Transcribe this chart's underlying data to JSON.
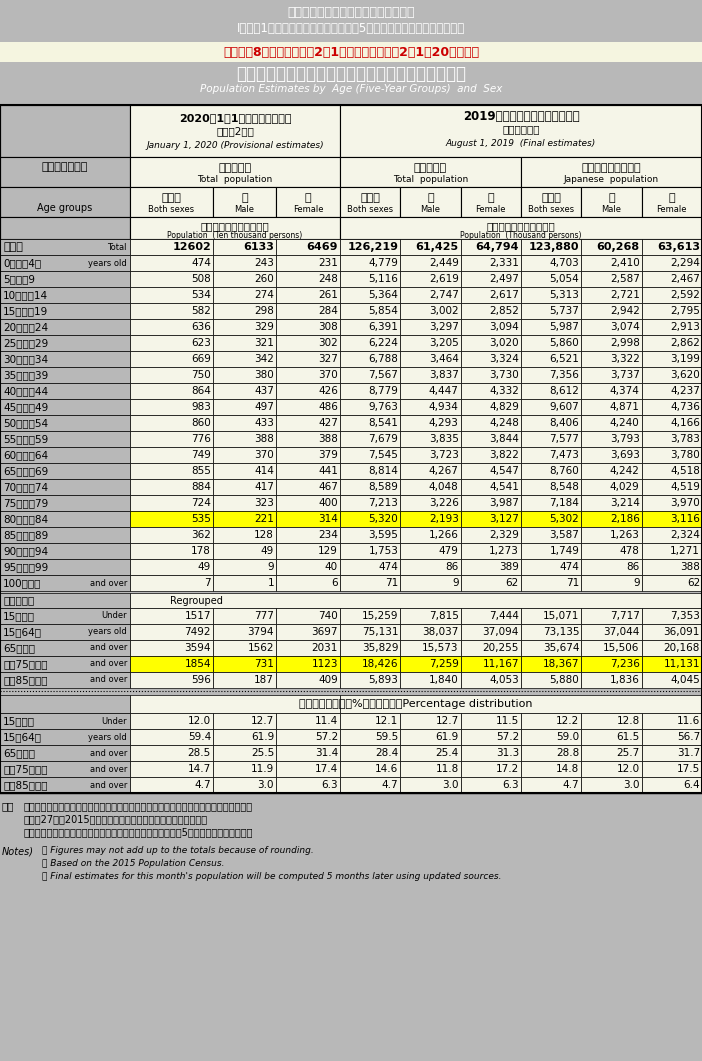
{
  "title1": "総務省統計局　人口推計の結果の概要",
  "title2": "I．各月1日現在人口　「全国：年齢（5歳階級），男女別人口」統計表",
  "title3": "令和元年8月確定値、令和2年1月概算値　（令和2年1月20日公表）",
  "main_title": "年　齢（５　歳　階　級），　男　女　別　人　口",
  "main_title_en": "Population Estimates by  Age (Five-Year Groups)  and  Sex",
  "col_header1_ja": "2020年1月1日現在（概算値）",
  "col_header1_sub_ja": "（令和2年）",
  "col_header1_en": "January 1, 2020 (Provisional estimates)",
  "col_header2_ja": "2019年８月１日現在（確定値）",
  "col_header2_sub_ja": "（令和元年）",
  "col_header2_en": "August 1, 2019  (Final estimates)",
  "bg_gray": "#b8b8b8",
  "bg_light": "#f5f5e8",
  "bg_yellow": "#ffff00",
  "row_data": [
    {
      "age_ja": "総　数",
      "age_en": "Total",
      "v2020_bs": "12602",
      "v2020_m": "6133",
      "v2020_f": "6469",
      "v2019_bs": "126,219",
      "v2019_m": "61,425",
      "v2019_f": "64,794",
      "v2019j_bs": "123,880",
      "v2019j_m": "60,268",
      "v2019j_f": "63,613",
      "bold": true,
      "yellow": false
    },
    {
      "age_ja": "0　～　4歳",
      "age_en": "years old",
      "v2020_bs": "474",
      "v2020_m": "243",
      "v2020_f": "231",
      "v2019_bs": "4,779",
      "v2019_m": "2,449",
      "v2019_f": "2,331",
      "v2019j_bs": "4,703",
      "v2019j_m": "2,410",
      "v2019j_f": "2,294",
      "bold": false,
      "yellow": false
    },
    {
      "age_ja": "5　～　9",
      "age_en": "",
      "v2020_bs": "508",
      "v2020_m": "260",
      "v2020_f": "248",
      "v2019_bs": "5,116",
      "v2019_m": "2,619",
      "v2019_f": "2,497",
      "v2019j_bs": "5,054",
      "v2019j_m": "2,587",
      "v2019j_f": "2,467",
      "bold": false,
      "yellow": false
    },
    {
      "age_ja": "10　～　14",
      "age_en": "",
      "v2020_bs": "534",
      "v2020_m": "274",
      "v2020_f": "261",
      "v2019_bs": "5,364",
      "v2019_m": "2,747",
      "v2019_f": "2,617",
      "v2019j_bs": "5,313",
      "v2019j_m": "2,721",
      "v2019j_f": "2,592",
      "bold": false,
      "yellow": false
    },
    {
      "age_ja": "15　～　19",
      "age_en": "",
      "v2020_bs": "582",
      "v2020_m": "298",
      "v2020_f": "284",
      "v2019_bs": "5,854",
      "v2019_m": "3,002",
      "v2019_f": "2,852",
      "v2019j_bs": "5,737",
      "v2019j_m": "2,942",
      "v2019j_f": "2,795",
      "bold": false,
      "yellow": false
    },
    {
      "age_ja": "20　～　24",
      "age_en": "",
      "v2020_bs": "636",
      "v2020_m": "329",
      "v2020_f": "308",
      "v2019_bs": "6,391",
      "v2019_m": "3,297",
      "v2019_f": "3,094",
      "v2019j_bs": "5,987",
      "v2019j_m": "3,074",
      "v2019j_f": "2,913",
      "bold": false,
      "yellow": false
    },
    {
      "age_ja": "25　～　29",
      "age_en": "",
      "v2020_bs": "623",
      "v2020_m": "321",
      "v2020_f": "302",
      "v2019_bs": "6,224",
      "v2019_m": "3,205",
      "v2019_f": "3,020",
      "v2019j_bs": "5,860",
      "v2019j_m": "2,998",
      "v2019j_f": "2,862",
      "bold": false,
      "yellow": false
    },
    {
      "age_ja": "30　～　34",
      "age_en": "",
      "v2020_bs": "669",
      "v2020_m": "342",
      "v2020_f": "327",
      "v2019_bs": "6,788",
      "v2019_m": "3,464",
      "v2019_f": "3,324",
      "v2019j_bs": "6,521",
      "v2019j_m": "3,322",
      "v2019j_f": "3,199",
      "bold": false,
      "yellow": false
    },
    {
      "age_ja": "35　～　39",
      "age_en": "",
      "v2020_bs": "750",
      "v2020_m": "380",
      "v2020_f": "370",
      "v2019_bs": "7,567",
      "v2019_m": "3,837",
      "v2019_f": "3,730",
      "v2019j_bs": "7,356",
      "v2019j_m": "3,737",
      "v2019j_f": "3,620",
      "bold": false,
      "yellow": false
    },
    {
      "age_ja": "40　～　44",
      "age_en": "",
      "v2020_bs": "864",
      "v2020_m": "437",
      "v2020_f": "426",
      "v2019_bs": "8,779",
      "v2019_m": "4,447",
      "v2019_f": "4,332",
      "v2019j_bs": "8,612",
      "v2019j_m": "4,374",
      "v2019j_f": "4,237",
      "bold": false,
      "yellow": false
    },
    {
      "age_ja": "45　～　49",
      "age_en": "",
      "v2020_bs": "983",
      "v2020_m": "497",
      "v2020_f": "486",
      "v2019_bs": "9,763",
      "v2019_m": "4,934",
      "v2019_f": "4,829",
      "v2019j_bs": "9,607",
      "v2019j_m": "4,871",
      "v2019j_f": "4,736",
      "bold": false,
      "yellow": false
    },
    {
      "age_ja": "50　～　54",
      "age_en": "",
      "v2020_bs": "860",
      "v2020_m": "433",
      "v2020_f": "427",
      "v2019_bs": "8,541",
      "v2019_m": "4,293",
      "v2019_f": "4,248",
      "v2019j_bs": "8,406",
      "v2019j_m": "4,240",
      "v2019j_f": "4,166",
      "bold": false,
      "yellow": false
    },
    {
      "age_ja": "55　～　59",
      "age_en": "",
      "v2020_bs": "776",
      "v2020_m": "388",
      "v2020_f": "388",
      "v2019_bs": "7,679",
      "v2019_m": "3,835",
      "v2019_f": "3,844",
      "v2019j_bs": "7,577",
      "v2019j_m": "3,793",
      "v2019j_f": "3,783",
      "bold": false,
      "yellow": false
    },
    {
      "age_ja": "60　～　64",
      "age_en": "",
      "v2020_bs": "749",
      "v2020_m": "370",
      "v2020_f": "379",
      "v2019_bs": "7,545",
      "v2019_m": "3,723",
      "v2019_f": "3,822",
      "v2019j_bs": "7,473",
      "v2019j_m": "3,693",
      "v2019j_f": "3,780",
      "bold": false,
      "yellow": false
    },
    {
      "age_ja": "65　～　69",
      "age_en": "",
      "v2020_bs": "855",
      "v2020_m": "414",
      "v2020_f": "441",
      "v2019_bs": "8,814",
      "v2019_m": "4,267",
      "v2019_f": "4,547",
      "v2019j_bs": "8,760",
      "v2019j_m": "4,242",
      "v2019j_f": "4,518",
      "bold": false,
      "yellow": false
    },
    {
      "age_ja": "70　～　74",
      "age_en": "",
      "v2020_bs": "884",
      "v2020_m": "417",
      "v2020_f": "467",
      "v2019_bs": "8,589",
      "v2019_m": "4,048",
      "v2019_f": "4,541",
      "v2019j_bs": "8,548",
      "v2019j_m": "4,029",
      "v2019j_f": "4,519",
      "bold": false,
      "yellow": false
    },
    {
      "age_ja": "75　～　79",
      "age_en": "",
      "v2020_bs": "724",
      "v2020_m": "323",
      "v2020_f": "400",
      "v2019_bs": "7,213",
      "v2019_m": "3,226",
      "v2019_f": "3,987",
      "v2019j_bs": "7,184",
      "v2019j_m": "3,214",
      "v2019j_f": "3,970",
      "bold": false,
      "yellow": false
    },
    {
      "age_ja": "80　～　84",
      "age_en": "",
      "v2020_bs": "535",
      "v2020_m": "221",
      "v2020_f": "314",
      "v2019_bs": "5,320",
      "v2019_m": "2,193",
      "v2019_f": "3,127",
      "v2019j_bs": "5,302",
      "v2019j_m": "2,186",
      "v2019j_f": "3,116",
      "bold": false,
      "yellow": true
    },
    {
      "age_ja": "85　～　89",
      "age_en": "",
      "v2020_bs": "362",
      "v2020_m": "128",
      "v2020_f": "234",
      "v2019_bs": "3,595",
      "v2019_m": "1,266",
      "v2019_f": "2,329",
      "v2019j_bs": "3,587",
      "v2019j_m": "1,263",
      "v2019j_f": "2,324",
      "bold": false,
      "yellow": false
    },
    {
      "age_ja": "90　～　94",
      "age_en": "",
      "v2020_bs": "178",
      "v2020_m": "49",
      "v2020_f": "129",
      "v2019_bs": "1,753",
      "v2019_m": "479",
      "v2019_f": "1,273",
      "v2019j_bs": "1,749",
      "v2019j_m": "478",
      "v2019j_f": "1,271",
      "bold": false,
      "yellow": false
    },
    {
      "age_ja": "95　～　99",
      "age_en": "",
      "v2020_bs": "49",
      "v2020_m": "9",
      "v2020_f": "40",
      "v2019_bs": "474",
      "v2019_m": "86",
      "v2019_f": "389",
      "v2019j_bs": "474",
      "v2019j_m": "86",
      "v2019j_f": "388",
      "bold": false,
      "yellow": false
    },
    {
      "age_ja": "100歳以上",
      "age_en": "and over",
      "v2020_bs": "7",
      "v2020_m": "1",
      "v2020_f": "6",
      "v2019_bs": "71",
      "v2019_m": "9",
      "v2019_f": "62",
      "v2019j_bs": "71",
      "v2019j_m": "9",
      "v2019j_f": "62",
      "bold": false,
      "yellow": false
    }
  ],
  "regroup_data": [
    {
      "age_ja": "（再　掲）",
      "age_en": "Regrouped",
      "header": true
    },
    {
      "age_ja": "15歳未満",
      "age_en": "Under",
      "v2020_bs": "1517",
      "v2020_m": "777",
      "v2020_f": "740",
      "v2019_bs": "15,259",
      "v2019_m": "7,815",
      "v2019_f": "7,444",
      "v2019j_bs": "15,071",
      "v2019j_m": "7,717",
      "v2019j_f": "7,353",
      "bold": false,
      "yellow": false
    },
    {
      "age_ja": "15～64歳",
      "age_en": "years old",
      "v2020_bs": "7492",
      "v2020_m": "3794",
      "v2020_f": "3697",
      "v2019_bs": "75,131",
      "v2019_m": "38,037",
      "v2019_f": "37,094",
      "v2019j_bs": "73,135",
      "v2019j_m": "37,044",
      "v2019j_f": "36,091",
      "bold": false,
      "yellow": false
    },
    {
      "age_ja": "65歳以上",
      "age_en": "and over",
      "v2020_bs": "3594",
      "v2020_m": "1562",
      "v2020_f": "2031",
      "v2019_bs": "35,829",
      "v2019_m": "15,573",
      "v2019_f": "20,255",
      "v2019j_bs": "35,674",
      "v2019j_m": "15,506",
      "v2019j_f": "20,168",
      "bold": false,
      "yellow": false
    },
    {
      "age_ja": "うち75歳以上",
      "age_en": "and over",
      "v2020_bs": "1854",
      "v2020_m": "731",
      "v2020_f": "1123",
      "v2019_bs": "18,426",
      "v2019_m": "7,259",
      "v2019_f": "11,167",
      "v2019j_bs": "18,367",
      "v2019j_m": "7,236",
      "v2019j_f": "11,131",
      "bold": false,
      "yellow": true
    },
    {
      "age_ja": "うち85歳以上",
      "age_en": "and over",
      "v2020_bs": "596",
      "v2020_m": "187",
      "v2020_f": "409",
      "v2019_bs": "5,893",
      "v2019_m": "1,840",
      "v2019_f": "4,053",
      "v2019j_bs": "5,880",
      "v2019j_m": "1,836",
      "v2019j_f": "4,045",
      "bold": false,
      "yellow": false
    }
  ],
  "ratio_data": [
    {
      "age_ja": "15歳未満",
      "age_en": "Under",
      "v2020_bs": "12.0",
      "v2020_m": "12.7",
      "v2020_f": "11.4",
      "v2019_bs": "12.1",
      "v2019_m": "12.7",
      "v2019_f": "11.5",
      "v2019j_bs": "12.2",
      "v2019j_m": "12.8",
      "v2019j_f": "11.6"
    },
    {
      "age_ja": "15～64歳",
      "age_en": "years old",
      "v2020_bs": "59.4",
      "v2020_m": "61.9",
      "v2020_f": "57.2",
      "v2019_bs": "59.5",
      "v2019_m": "61.9",
      "v2019_f": "57.2",
      "v2019j_bs": "59.0",
      "v2019j_m": "61.5",
      "v2019j_f": "56.7"
    },
    {
      "age_ja": "65歳以上",
      "age_en": "and over",
      "v2020_bs": "28.5",
      "v2020_m": "25.5",
      "v2020_f": "31.4",
      "v2019_bs": "28.4",
      "v2019_m": "25.4",
      "v2019_f": "31.3",
      "v2019j_bs": "28.8",
      "v2019j_m": "25.7",
      "v2019j_f": "31.7"
    },
    {
      "age_ja": "うち75歳以上",
      "age_en": "and over",
      "v2020_bs": "14.7",
      "v2020_m": "11.9",
      "v2020_f": "17.4",
      "v2019_bs": "14.6",
      "v2019_m": "11.8",
      "v2019_f": "17.2",
      "v2019j_bs": "14.8",
      "v2019j_m": "12.0",
      "v2019j_f": "17.5"
    },
    {
      "age_ja": "うち85歳以上",
      "age_en": "and over",
      "v2020_bs": "4.7",
      "v2020_m": "3.0",
      "v2020_f": "6.3",
      "v2019_bs": "4.7",
      "v2019_m": "3.0",
      "v2019_f": "6.3",
      "v2019j_bs": "4.7",
      "v2019j_m": "3.0",
      "v2019j_f": "6.4"
    }
  ],
  "notes_ja": [
    "・単位未満は四捨五入してあるため，合計の数字と内訳の計が一致しない場合がある。",
    "・平成27年（2015年）国勢調査による人口を基準としている。",
    "・当月分の人口（概算値）は，算出用データの更新に伴い，5か月後に確定値となる。"
  ],
  "notes_en": [
    "・ Figures may not add up to the totals because of rounding.",
    "・ Based on the 2015 Population Census.",
    "・ Final estimates for this month's population will be computed 5 months later using updated sources."
  ]
}
